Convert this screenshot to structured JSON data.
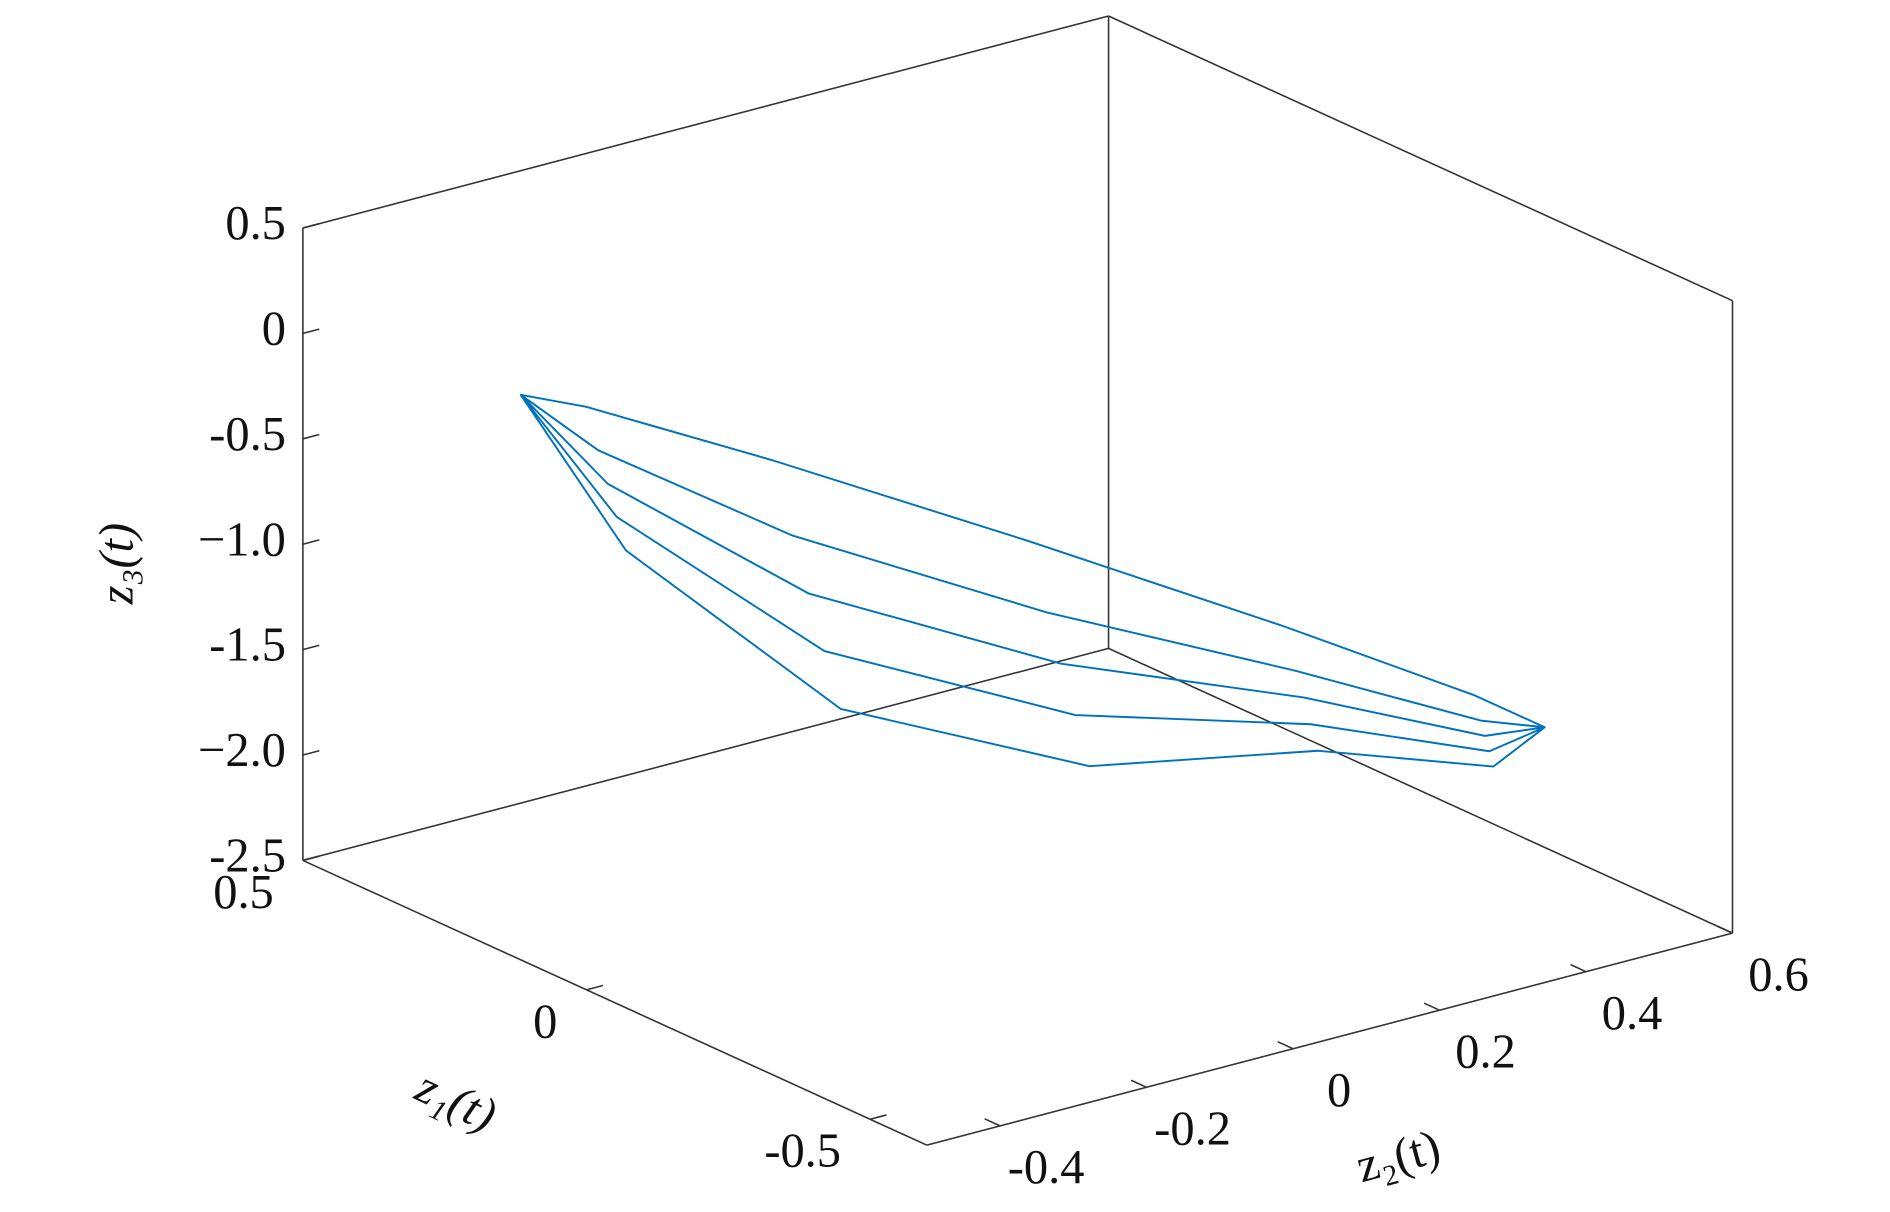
{
  "chart_data": {
    "type": "line3d",
    "xlabel": "z₁(t)",
    "ylabel": "z₂(t)",
    "zlabel": "z₃(t)",
    "color": "#0072bd",
    "xlim": [
      -0.6,
      0.5
    ],
    "ylim": [
      -0.5,
      0.6
    ],
    "zlim": [
      -2.5,
      0.5
    ],
    "xticks": [
      -0.5,
      0,
      0.5
    ],
    "yticks": [
      -0.4,
      -0.2,
      0,
      0.2,
      0.4,
      0.6
    ],
    "zticks": [
      -2.5,
      {
        "value": -2,
        "label": "−2.0"
      },
      -1.5,
      {
        "value": -1,
        "label": "−1.0"
      },
      -0.5,
      0,
      0.5
    ],
    "x": [
      0.4,
      0.288,
      0.112,
      -0.05,
      -0.177,
      -0.283,
      -0.3,
      -0.248,
      -0.116,
      0.06,
      0.234,
      0.358,
      0.4,
      0.304,
      0.141,
      -0.025,
      -0.164,
      -0.276,
      -0.3,
      -0.248,
      -0.116,
      0.06,
      0.234,
      0.358,
      0.4,
      0.32,
      0.169,
      0.0,
      -0.151,
      -0.268,
      -0.3,
      -0.248,
      -0.116,
      0.06,
      0.234,
      0.358,
      0.4,
      0.337,
      0.197,
      0.025,
      -0.138,
      -0.261,
      -0.3,
      -0.248,
      -0.116,
      0.06,
      0.234,
      0.358,
      0.4
    ],
    "y": [
      -0.28,
      -0.223,
      -0.066,
      0.148,
      0.362,
      0.519,
      0.576,
      0.519,
      0.362,
      0.148,
      -0.066,
      -0.223,
      -0.28,
      -0.223,
      -0.066,
      0.148,
      0.362,
      0.519,
      0.576,
      0.519,
      0.362,
      0.148,
      -0.066,
      -0.223,
      -0.28,
      -0.223,
      -0.066,
      0.148,
      0.362,
      0.519,
      0.576,
      0.519,
      0.362,
      0.148,
      -0.066,
      -0.223,
      -0.28,
      -0.223,
      -0.066,
      0.148,
      0.362,
      0.519,
      0.576,
      0.519,
      0.362,
      0.148,
      -0.066,
      -0.223,
      -0.28
    ],
    "z": [
      -0.37,
      -1.023,
      -1.702,
      -1.97,
      -1.937,
      -2.025,
      -1.87,
      -1.728,
      -1.421,
      -1.035,
      -0.671,
      -0.427,
      -0.37,
      -0.884,
      -1.463,
      -1.758,
      -1.827,
      -1.961,
      -1.87,
      -1.728,
      -1.421,
      -1.035,
      -0.671,
      -0.427,
      -0.37,
      -0.746,
      -1.224,
      -1.545,
      -1.716,
      -1.898,
      -1.87,
      -1.728,
      -1.421,
      -1.035,
      -0.671,
      -0.427,
      -0.37,
      -0.608,
      -0.984,
      -1.333,
      -1.606,
      -1.834,
      -1.87,
      -1.728,
      -1.421,
      -1.035,
      -0.671,
      -0.427,
      -0.37
    ]
  }
}
